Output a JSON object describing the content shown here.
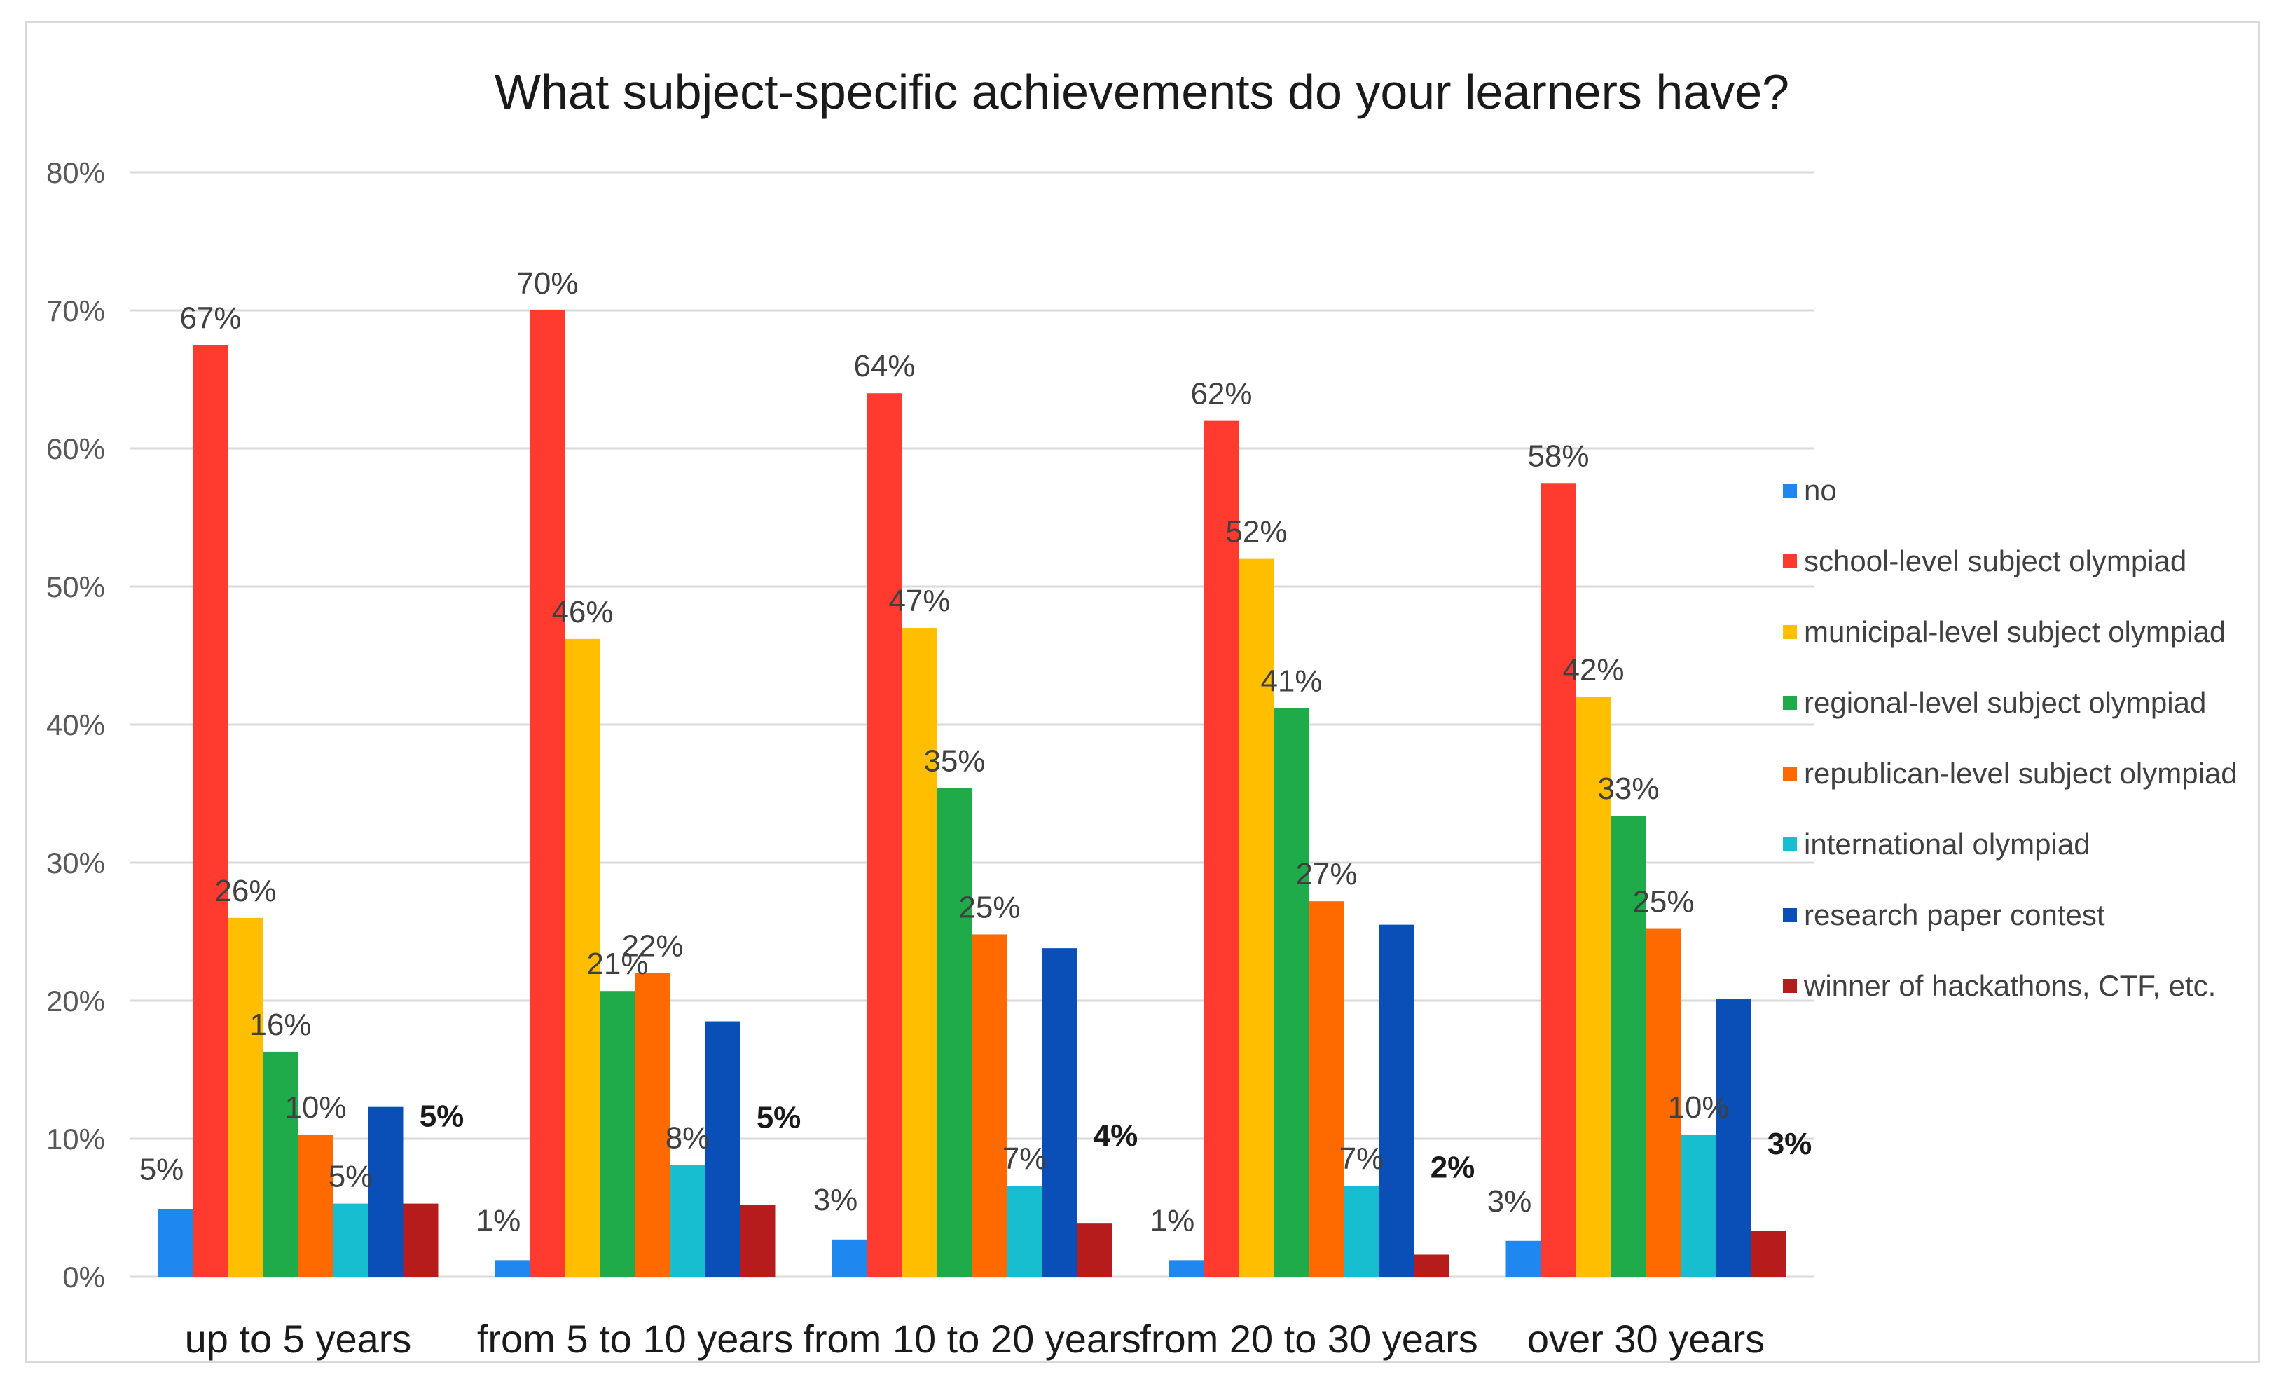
{
  "chart_data": {
    "type": "bar",
    "title": "What subject-specific achievements do your learners have?",
    "xlabel": "",
    "ylabel": "",
    "ylim": [
      0,
      80
    ],
    "yticks": [
      "0%",
      "10%",
      "20%",
      "30%",
      "40%",
      "50%",
      "60%",
      "70%",
      "80%"
    ],
    "grid": true,
    "legend_position": "right",
    "categories": [
      "up to 5 years",
      "from 5 to 10 years",
      "from 10 to 20 years",
      "from 20 to 30 years",
      "over 30 years"
    ],
    "series": [
      {
        "name": "no",
        "color": "#1e88f0",
        "values": [
          4.9,
          1.2,
          2.7,
          1.2,
          2.6
        ],
        "labels": [
          "5%",
          "1%",
          "3%",
          "1%",
          "3%"
        ]
      },
      {
        "name": "school-level subject olympiad",
        "color": "#ff3b30",
        "values": [
          67.5,
          70.0,
          64.0,
          62.0,
          57.5
        ],
        "labels": [
          "67%",
          "70%",
          "64%",
          "62%",
          "58%"
        ]
      },
      {
        "name": "municipal-level subject olympiad",
        "color": "#ffbf00",
        "values": [
          26.0,
          46.2,
          47.0,
          52.0,
          42.0
        ],
        "labels": [
          "26%",
          "46%",
          "47%",
          "52%",
          "42%"
        ]
      },
      {
        "name": "regional-level subject olympiad",
        "color": "#1fab4a",
        "values": [
          16.3,
          20.7,
          35.4,
          41.2,
          33.4
        ],
        "labels": [
          "16%",
          "21%",
          "35%",
          "41%",
          "33%"
        ]
      },
      {
        "name": "republican-level subject olympiad",
        "color": "#ff6a00",
        "values": [
          10.3,
          22.0,
          24.8,
          27.2,
          25.2
        ],
        "labels": [
          "10%",
          "22%",
          "25%",
          "27%",
          "25%"
        ]
      },
      {
        "name": "international olympiad",
        "color": "#17becf",
        "values": [
          5.3,
          8.1,
          6.6,
          6.6,
          10.3
        ],
        "labels": [
          "5%",
          "8%",
          "7%",
          "7%",
          "10%"
        ]
      },
      {
        "name": "research paper contest",
        "color": "#0a4fb8",
        "values": [
          12.3,
          18.5,
          23.8,
          25.5,
          20.1
        ],
        "labels": [
          "",
          "",
          "",
          "",
          ""
        ]
      },
      {
        "name": "winner of hackathons, CTF, etc.",
        "color": "#b71c1c",
        "values": [
          5.3,
          5.2,
          3.9,
          1.6,
          3.3
        ],
        "labels": [
          "5%",
          "5%",
          "4%",
          "2%",
          "3%"
        ]
      }
    ]
  }
}
